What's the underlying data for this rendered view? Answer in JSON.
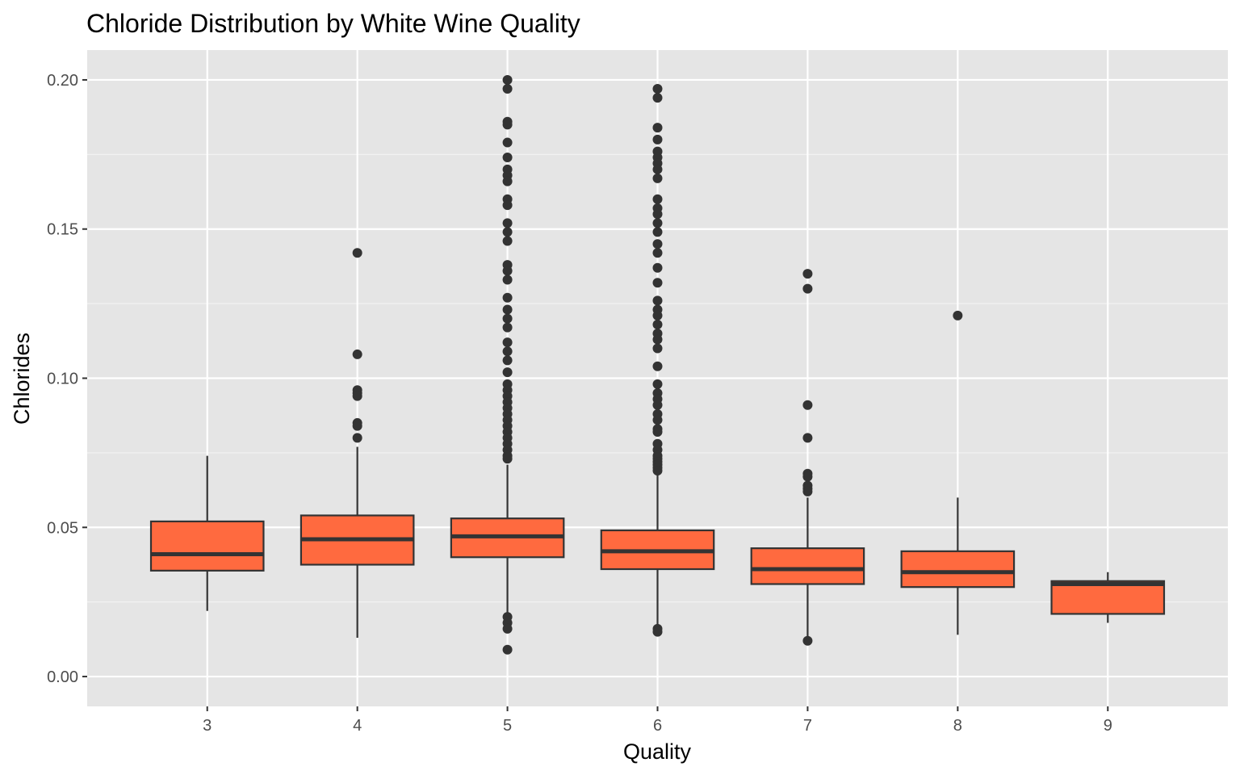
{
  "chart_data": {
    "type": "boxplot",
    "title": "Chloride Distribution by White Wine Quality",
    "xlabel": "Quality",
    "ylabel": "Chlorides",
    "ylim": [
      -0.01,
      0.21
    ],
    "yticks": [
      "0.00",
      "0.05",
      "0.10",
      "0.15",
      "0.20"
    ],
    "grid": true,
    "box_fill": "#FF6A3F",
    "panel_bg": "#E5E5E5",
    "categories": [
      "3",
      "4",
      "5",
      "6",
      "7",
      "8",
      "9"
    ],
    "boxes": [
      {
        "quality": "3",
        "whisker_low": 0.022,
        "q1": 0.0355,
        "median": 0.041,
        "q3": 0.052,
        "whisker_high": 0.074,
        "outliers": []
      },
      {
        "quality": "4",
        "whisker_low": 0.013,
        "q1": 0.0375,
        "median": 0.046,
        "q3": 0.054,
        "whisker_high": 0.077,
        "outliers": [
          0.142,
          0.108,
          0.096,
          0.095,
          0.094,
          0.085,
          0.084,
          0.08
        ]
      },
      {
        "quality": "5",
        "whisker_low": 0.021,
        "q1": 0.04,
        "median": 0.047,
        "q3": 0.053,
        "whisker_high": 0.071,
        "outliers": [
          0.2,
          0.197,
          0.186,
          0.185,
          0.179,
          0.174,
          0.17,
          0.168,
          0.166,
          0.16,
          0.158,
          0.152,
          0.149,
          0.146,
          0.138,
          0.136,
          0.133,
          0.127,
          0.123,
          0.12,
          0.117,
          0.112,
          0.109,
          0.106,
          0.102,
          0.098,
          0.096,
          0.094,
          0.092,
          0.09,
          0.088,
          0.086,
          0.084,
          0.082,
          0.08,
          0.078,
          0.076,
          0.074,
          0.073,
          0.02,
          0.018,
          0.016,
          0.009
        ]
      },
      {
        "quality": "6",
        "whisker_low": 0.017,
        "q1": 0.036,
        "median": 0.042,
        "q3": 0.049,
        "whisker_high": 0.068,
        "outliers": [
          0.197,
          0.194,
          0.184,
          0.18,
          0.176,
          0.174,
          0.172,
          0.17,
          0.167,
          0.16,
          0.157,
          0.155,
          0.152,
          0.149,
          0.145,
          0.142,
          0.137,
          0.132,
          0.126,
          0.123,
          0.121,
          0.118,
          0.115,
          0.113,
          0.11,
          0.104,
          0.098,
          0.095,
          0.093,
          0.091,
          0.088,
          0.086,
          0.083,
          0.082,
          0.078,
          0.076,
          0.074,
          0.073,
          0.072,
          0.071,
          0.07,
          0.069,
          0.016,
          0.015
        ]
      },
      {
        "quality": "7",
        "whisker_low": 0.012,
        "q1": 0.031,
        "median": 0.036,
        "q3": 0.043,
        "whisker_high": 0.06,
        "outliers": [
          0.135,
          0.13,
          0.091,
          0.08,
          0.068,
          0.067,
          0.064,
          0.063,
          0.062,
          0.012
        ]
      },
      {
        "quality": "8",
        "whisker_low": 0.014,
        "q1": 0.03,
        "median": 0.035,
        "q3": 0.042,
        "whisker_high": 0.06,
        "outliers": [
          0.121
        ]
      },
      {
        "quality": "9",
        "whisker_low": 0.018,
        "q1": 0.021,
        "median": 0.031,
        "q3": 0.032,
        "whisker_high": 0.035,
        "outliers": []
      }
    ]
  }
}
